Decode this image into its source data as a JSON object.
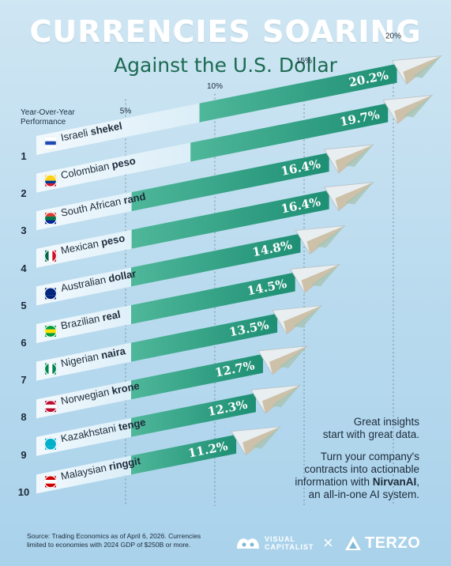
{
  "header": {
    "title": "CURRENCIES SOARING",
    "subtitle": "Against the U.S. Dollar",
    "yoy_label_1": "Year-Over-Year",
    "yoy_label_2": "Performance"
  },
  "chart_data": {
    "type": "bar",
    "orientation": "horizontal",
    "title": "CURRENCIES SOARING",
    "subtitle": "Against the U.S. Dollar",
    "ylabel": "Year-Over-Year Performance",
    "xlim": [
      0,
      22
    ],
    "gridlines": [
      5,
      10,
      15,
      20
    ],
    "tick_labels": [
      "5%",
      "10%",
      "15%",
      "20%"
    ],
    "categories": [
      {
        "rank": "1",
        "name": "Israeli",
        "unit": "shekel",
        "flag": "flag-israel"
      },
      {
        "rank": "2",
        "name": "Colombian",
        "unit": "peso",
        "flag": "flag-colombia"
      },
      {
        "rank": "3",
        "name": "South African",
        "unit": "rand",
        "flag": "flag-south-africa"
      },
      {
        "rank": "4",
        "name": "Mexican",
        "unit": "peso",
        "flag": "flag-mexico"
      },
      {
        "rank": "5",
        "name": "Australian",
        "unit": "dollar",
        "flag": "flag-australia"
      },
      {
        "rank": "6",
        "name": "Brazilian",
        "unit": "real",
        "flag": "flag-brazil"
      },
      {
        "rank": "7",
        "name": "Nigerian",
        "unit": "naira",
        "flag": "flag-nigeria"
      },
      {
        "rank": "8",
        "name": "Norwegian",
        "unit": "krone",
        "flag": "flag-norway"
      },
      {
        "rank": "9",
        "name": "Kazakhstani",
        "unit": "tenge",
        "flag": "flag-kazakhstan"
      },
      {
        "rank": "10",
        "name": "Malaysian",
        "unit": "ringgit",
        "flag": "flag-malaysia"
      }
    ],
    "values": [
      20.2,
      19.7,
      16.4,
      16.4,
      14.8,
      14.5,
      13.5,
      12.7,
      12.3,
      11.2
    ],
    "value_labels": [
      "20.2%",
      "19.7%",
      "16.4%",
      "16.4%",
      "14.8%",
      "14.5%",
      "13.5%",
      "12.7%",
      "12.3%",
      "11.2%"
    ],
    "bar_color": "#1e8f74",
    "bar_light_color": "#d8eef8"
  },
  "side_note": {
    "line1": "Great insights",
    "line2": "start with great data.",
    "line3": "Turn your company's",
    "line4": "contracts into actionable",
    "line5_prefix": "information with ",
    "line5_brand": "NirvanAI",
    "line5_suffix": ",",
    "line6": "an all-in-one AI system."
  },
  "footer": {
    "source_line1": "Source: Trading Economics as of April 6, 2026. Currencies",
    "source_line2": "limited to economies with 2024 GDP of $250B or more.",
    "brand1_line1": "VISUAL",
    "brand1_line2": "CAPITALIST",
    "separator": "×",
    "brand2": "TERZO"
  }
}
